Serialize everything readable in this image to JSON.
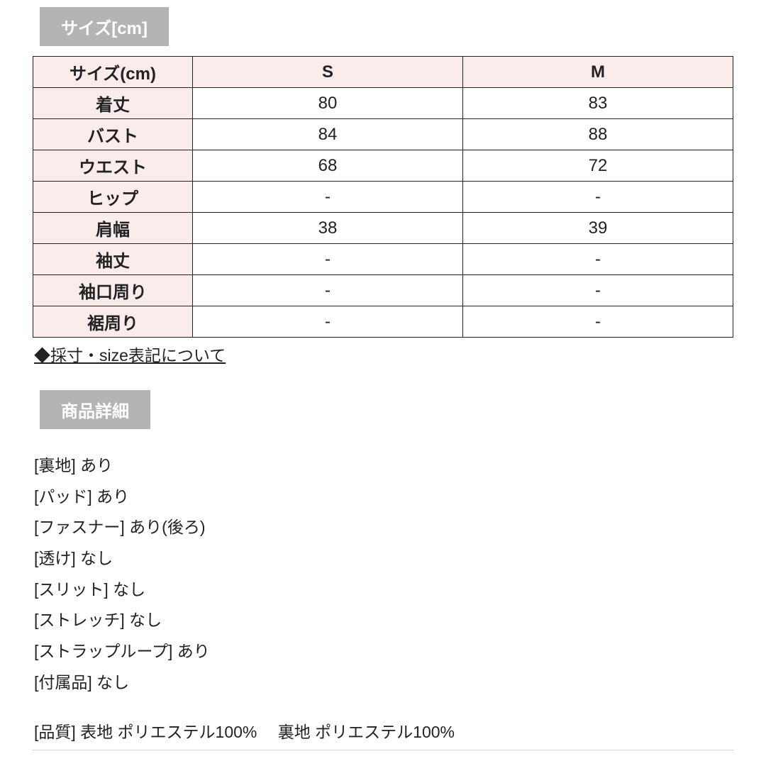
{
  "colors": {
    "header_bg": "#b4b4b4",
    "header_fg": "#ffffff",
    "table_border": "#222222",
    "row_label_bg": "#fbecec",
    "body_bg": "#ffffff",
    "text": "#222222",
    "divider": "#d0d0d0"
  },
  "typography": {
    "header_fontsize": 24,
    "cell_fontsize": 24,
    "body_fontsize": 23,
    "header_fontweight": 600,
    "label_fontweight": 700
  },
  "size_section": {
    "title": "サイズ[cm]",
    "columns": [
      "サイズ(cm)",
      "S",
      "M"
    ],
    "rows": [
      {
        "label": "着丈",
        "values": [
          "80",
          "83"
        ]
      },
      {
        "label": "バスト",
        "values": [
          "84",
          "88"
        ]
      },
      {
        "label": "ウエスト",
        "values": [
          "68",
          "72"
        ]
      },
      {
        "label": "ヒップ",
        "values": [
          "-",
          "-"
        ]
      },
      {
        "label": "肩幅",
        "values": [
          "38",
          "39"
        ]
      },
      {
        "label": "袖丈",
        "values": [
          "-",
          "-"
        ]
      },
      {
        "label": "袖口周り",
        "values": [
          "-",
          "-"
        ]
      },
      {
        "label": "裾周り",
        "values": [
          "-",
          "-"
        ]
      }
    ],
    "note": "◆採寸・size表記について"
  },
  "details_section": {
    "title": "商品詳細",
    "items": [
      "[裏地] あり",
      "[パッド] あり",
      "[ファスナー] あり(後ろ)",
      "[透け] なし",
      "[スリット] なし",
      "[ストレッチ] なし",
      "[ストラップループ] あり",
      "[付属品] なし"
    ],
    "quality": "[品質] 表地 ポリエステル100%　 裏地 ポリエステル100%"
  }
}
